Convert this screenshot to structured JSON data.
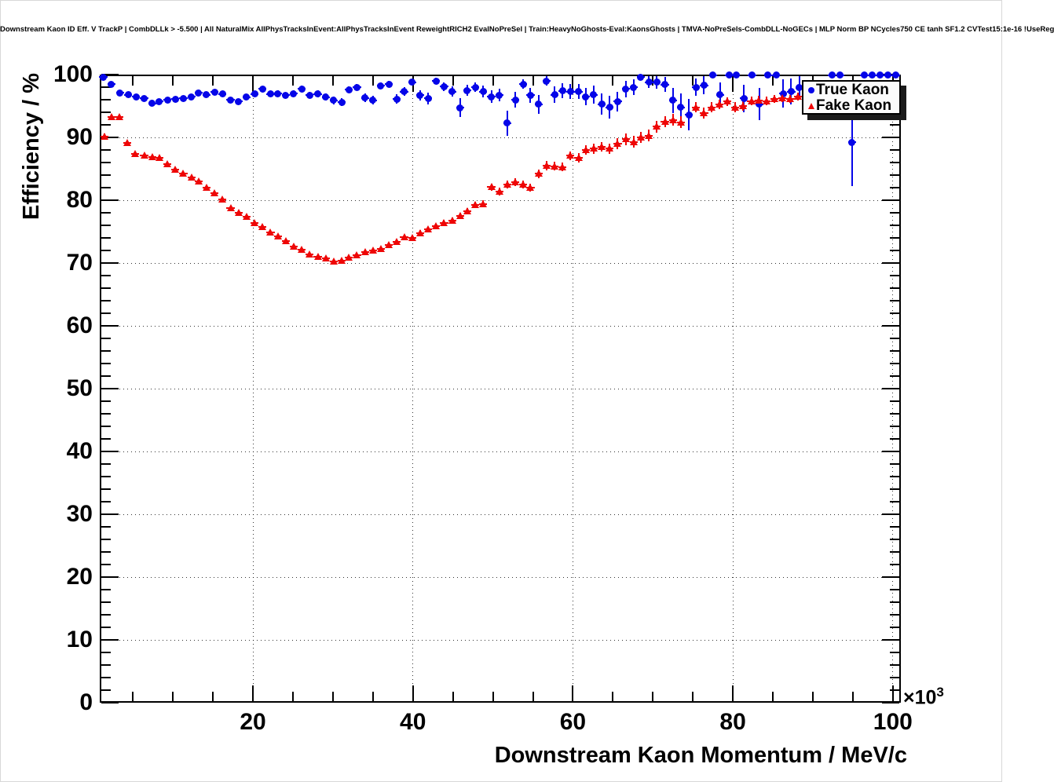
{
  "page": {
    "title": "Downstream Kaon ID Eff. V TrackP | CombDLLk > -5.500 | All NaturalMix AllPhysTracksInEvent:AllPhysTracksInEvent ReweightRICH2 EvalNoPreSel | Train:HeavyNoGhosts-Eval:KaonsGhosts | TMVA-NoPreSels-CombDLL-NoGECs | MLP Norm BP NCycles750 CE tanh SF1.2 CVTest15:1e-16 !UseReg"
  },
  "chart_data": {
    "type": "scatter",
    "title": "Downstream Kaon ID Eff. V TrackP | CombDLLk > -5.500 | All NaturalMix AllPhysTracksInEvent:AllPhysTracksInEvent ReweightRICH2 EvalNoPreSel | Train:HeavyNoGhosts-Eval:KaonsGhosts | TMVA-NoPreSels-CombDLL-NoGECs | MLP Norm BP NCycles750 CE tanh SF1.2 CVTest15:1e-16 !UseReg",
    "xlabel": "Downstream Kaon Momentum / MeV/c",
    "ylabel": "Efficiency / %",
    "x_exponent": {
      "base": "×10",
      "power": "3"
    },
    "x_units_note": "x values below are in units of 10^3 MeV/c",
    "xlim": [
      0.85,
      101.0
    ],
    "ylim": [
      0,
      100
    ],
    "x_major_ticks": [
      20,
      40,
      60,
      80,
      100
    ],
    "x_minor_step": 5,
    "y_major_ticks": [
      0,
      10,
      20,
      30,
      40,
      50,
      60,
      70,
      80,
      90,
      100
    ],
    "y_minor_step": 2,
    "grid": true,
    "legend": {
      "position": "top-right",
      "entries": [
        {
          "label": "True Kaon",
          "marker": "circle",
          "color": "#0505e8"
        },
        {
          "label": "Fake Kaon",
          "marker": "triangle",
          "color": "#ee0606"
        }
      ]
    },
    "series": [
      {
        "name": "True Kaon",
        "marker": "circle",
        "color": "#0505e8",
        "xerr": 0.5,
        "points": [
          [
            1.3,
            99.6,
            0.3
          ],
          [
            2.3,
            98.5,
            0.35
          ],
          [
            3.4,
            97.1,
            0.3
          ],
          [
            4.4,
            96.8,
            0.3
          ],
          [
            5.4,
            96.5,
            0.3
          ],
          [
            6.4,
            96.2,
            0.3
          ],
          [
            7.4,
            95.4,
            0.3
          ],
          [
            8.3,
            95.7,
            0.3
          ],
          [
            9.3,
            96.0,
            0.3
          ],
          [
            10.3,
            96.1,
            0.3
          ],
          [
            11.3,
            96.2,
            0.3
          ],
          [
            12.3,
            96.5,
            0.3
          ],
          [
            13.2,
            97.1,
            0.3
          ],
          [
            14.2,
            96.8,
            0.3
          ],
          [
            15.2,
            97.2,
            0.3
          ],
          [
            16.2,
            96.9,
            0.3
          ],
          [
            17.2,
            96.0,
            0.35
          ],
          [
            18.2,
            95.7,
            0.35
          ],
          [
            19.2,
            96.4,
            0.35
          ],
          [
            20.2,
            96.9,
            0.4
          ],
          [
            21.2,
            97.7,
            0.4
          ],
          [
            22.2,
            96.9,
            0.4
          ],
          [
            23.1,
            97.0,
            0.45
          ],
          [
            24.1,
            96.7,
            0.45
          ],
          [
            25.1,
            97.0,
            0.5
          ],
          [
            26.1,
            97.7,
            0.5
          ],
          [
            27.1,
            96.7,
            0.5
          ],
          [
            28.1,
            96.9,
            0.55
          ],
          [
            29.1,
            96.4,
            0.55
          ],
          [
            30.1,
            95.9,
            0.6
          ],
          [
            31.1,
            95.6,
            0.6
          ],
          [
            32.0,
            97.6,
            0.5
          ],
          [
            33.0,
            98.0,
            0.5
          ],
          [
            34.0,
            96.3,
            0.65
          ],
          [
            35.0,
            95.9,
            0.7
          ],
          [
            36.0,
            98.2,
            0.5
          ],
          [
            37.0,
            98.5,
            0.5
          ],
          [
            38.0,
            96.1,
            0.75
          ],
          [
            38.9,
            97.3,
            0.7
          ],
          [
            39.9,
            98.8,
            0.5
          ],
          [
            40.9,
            96.7,
            0.85
          ],
          [
            41.9,
            96.2,
            0.9
          ],
          [
            42.9,
            99.0,
            0.5
          ],
          [
            43.9,
            98.1,
            0.7
          ],
          [
            44.9,
            97.3,
            0.8
          ],
          [
            45.9,
            94.7,
            1.5
          ],
          [
            46.8,
            97.5,
            0.9
          ],
          [
            47.8,
            98.0,
            0.8
          ],
          [
            48.8,
            97.3,
            0.9
          ],
          [
            49.8,
            96.5,
            1.0
          ],
          [
            50.8,
            96.7,
            1.0
          ],
          [
            51.8,
            92.3,
            2.0
          ],
          [
            52.8,
            96.0,
            1.2
          ],
          [
            53.8,
            98.5,
            0.8
          ],
          [
            54.7,
            96.7,
            1.2
          ],
          [
            55.7,
            95.3,
            1.5
          ],
          [
            56.7,
            99.0,
            0.7
          ],
          [
            57.7,
            96.8,
            1.3
          ],
          [
            58.7,
            97.4,
            1.2
          ],
          [
            59.7,
            97.3,
            1.2
          ],
          [
            60.7,
            97.3,
            1.2
          ],
          [
            61.6,
            96.5,
            1.4
          ],
          [
            62.6,
            96.8,
            1.4
          ],
          [
            63.6,
            95.3,
            1.7
          ],
          [
            64.6,
            94.8,
            1.8
          ],
          [
            65.6,
            95.7,
            1.6
          ],
          [
            66.6,
            97.7,
            1.3
          ],
          [
            67.6,
            98.0,
            1.2
          ],
          [
            68.5,
            99.6,
            0.4
          ],
          [
            69.5,
            98.8,
            0.9
          ],
          [
            70.5,
            98.8,
            1.0
          ],
          [
            71.5,
            98.4,
            1.2
          ],
          [
            72.5,
            95.9,
            2.0
          ],
          [
            73.5,
            94.8,
            2.2
          ],
          [
            74.5,
            93.6,
            2.5
          ],
          [
            75.4,
            98.0,
            1.4
          ],
          [
            76.4,
            98.3,
            1.4
          ],
          [
            77.5,
            99.9,
            0.1
          ],
          [
            78.4,
            96.8,
            2.0
          ],
          [
            79.5,
            99.9,
            0.1
          ],
          [
            80.4,
            99.9,
            0.1
          ],
          [
            81.4,
            96.2,
            2.2
          ],
          [
            82.4,
            99.9,
            0.1
          ],
          [
            83.3,
            95.3,
            2.6
          ],
          [
            84.4,
            99.9,
            0.1
          ],
          [
            85.4,
            99.9,
            0.1
          ],
          [
            86.3,
            97.0,
            2.2
          ],
          [
            87.3,
            97.3,
            2.1
          ],
          [
            88.3,
            97.9,
            1.8
          ],
          [
            92.4,
            99.9,
            0.1
          ],
          [
            93.4,
            99.9,
            0.1
          ],
          [
            94.9,
            89.2,
            7.0
          ],
          [
            96.4,
            99.9,
            0.1
          ],
          [
            97.4,
            99.9,
            0.1
          ],
          [
            98.4,
            99.9,
            0.1
          ],
          [
            99.4,
            99.9,
            0.1
          ],
          [
            100.4,
            99.9,
            0.1
          ]
        ]
      },
      {
        "name": "Fake Kaon",
        "marker": "triangle",
        "color": "#ee0606",
        "xerr": 0.5,
        "points": [
          [
            1.4,
            90.1,
            0.5
          ],
          [
            2.3,
            93.3,
            0.3
          ],
          [
            3.3,
            93.3,
            0.25
          ],
          [
            4.3,
            89.1,
            0.3
          ],
          [
            5.3,
            87.4,
            0.3
          ],
          [
            6.4,
            87.1,
            0.3
          ],
          [
            7.4,
            86.9,
            0.3
          ],
          [
            8.3,
            86.7,
            0.3
          ],
          [
            9.3,
            85.7,
            0.3
          ],
          [
            10.3,
            84.9,
            0.3
          ],
          [
            11.3,
            84.2,
            0.3
          ],
          [
            12.3,
            83.6,
            0.3
          ],
          [
            13.2,
            83.0,
            0.3
          ],
          [
            14.2,
            82.0,
            0.3
          ],
          [
            15.2,
            81.1,
            0.3
          ],
          [
            16.2,
            80.1,
            0.3
          ],
          [
            17.2,
            78.7,
            0.3
          ],
          [
            18.2,
            78.0,
            0.3
          ],
          [
            19.2,
            77.4,
            0.3
          ],
          [
            20.2,
            76.4,
            0.3
          ],
          [
            21.2,
            75.7,
            0.3
          ],
          [
            22.2,
            74.9,
            0.3
          ],
          [
            23.1,
            74.3,
            0.3
          ],
          [
            24.1,
            73.5,
            0.3
          ],
          [
            25.1,
            72.6,
            0.3
          ],
          [
            26.1,
            72.1,
            0.3
          ],
          [
            27.1,
            71.4,
            0.3
          ],
          [
            28.1,
            71.0,
            0.3
          ],
          [
            29.1,
            70.8,
            0.3
          ],
          [
            30.1,
            70.2,
            0.3
          ],
          [
            31.1,
            70.4,
            0.3
          ],
          [
            32.0,
            70.9,
            0.3
          ],
          [
            33.0,
            71.2,
            0.3
          ],
          [
            34.0,
            71.7,
            0.3
          ],
          [
            35.0,
            72.0,
            0.3
          ],
          [
            36.0,
            72.2,
            0.3
          ],
          [
            37.0,
            72.9,
            0.35
          ],
          [
            38.0,
            73.4,
            0.35
          ],
          [
            38.9,
            74.1,
            0.35
          ],
          [
            39.9,
            74.0,
            0.4
          ],
          [
            40.9,
            74.8,
            0.4
          ],
          [
            41.9,
            75.4,
            0.4
          ],
          [
            42.9,
            75.9,
            0.4
          ],
          [
            43.9,
            76.4,
            0.45
          ],
          [
            44.9,
            76.8,
            0.45
          ],
          [
            45.9,
            77.5,
            0.5
          ],
          [
            46.8,
            78.2,
            0.5
          ],
          [
            47.8,
            79.3,
            0.5
          ],
          [
            48.8,
            79.4,
            0.55
          ],
          [
            49.8,
            82.1,
            0.55
          ],
          [
            50.8,
            81.4,
            0.6
          ],
          [
            51.8,
            82.5,
            0.6
          ],
          [
            52.8,
            82.9,
            0.6
          ],
          [
            53.8,
            82.5,
            0.65
          ],
          [
            54.7,
            82.0,
            0.65
          ],
          [
            55.7,
            84.2,
            0.65
          ],
          [
            56.7,
            85.5,
            0.7
          ],
          [
            57.7,
            85.4,
            0.7
          ],
          [
            58.7,
            85.3,
            0.7
          ],
          [
            59.7,
            87.1,
            0.7
          ],
          [
            60.7,
            86.7,
            0.75
          ],
          [
            61.6,
            88.0,
            0.75
          ],
          [
            62.6,
            88.2,
            0.8
          ],
          [
            63.6,
            88.5,
            0.8
          ],
          [
            64.6,
            88.2,
            0.85
          ],
          [
            65.6,
            89.0,
            0.85
          ],
          [
            66.6,
            89.7,
            0.9
          ],
          [
            67.6,
            89.3,
            0.9
          ],
          [
            68.5,
            90.0,
            0.9
          ],
          [
            69.5,
            90.3,
            0.95
          ],
          [
            70.5,
            91.7,
            0.9
          ],
          [
            71.5,
            92.5,
            0.9
          ],
          [
            72.5,
            92.8,
            0.9
          ],
          [
            73.5,
            92.4,
            0.95
          ],
          [
            75.4,
            94.8,
            0.8
          ],
          [
            76.4,
            93.9,
            0.85
          ],
          [
            77.3,
            94.8,
            0.8
          ],
          [
            78.3,
            95.3,
            0.75
          ],
          [
            79.3,
            95.7,
            0.7
          ],
          [
            80.3,
            94.8,
            0.8
          ],
          [
            81.3,
            95.0,
            0.8
          ],
          [
            82.3,
            95.8,
            0.7
          ],
          [
            83.2,
            95.9,
            0.7
          ],
          [
            84.2,
            95.8,
            0.7
          ],
          [
            85.2,
            96.1,
            0.65
          ],
          [
            86.2,
            96.3,
            0.65
          ],
          [
            87.2,
            96.1,
            0.65
          ],
          [
            88.1,
            96.5,
            0.6
          ]
        ]
      }
    ]
  }
}
